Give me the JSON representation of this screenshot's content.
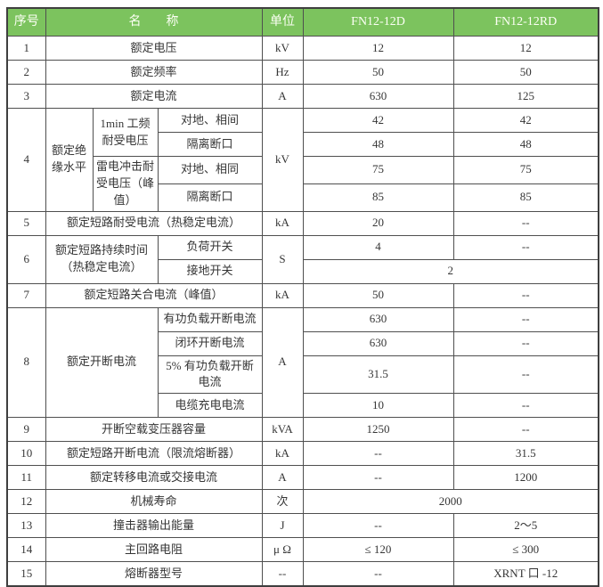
{
  "colors": {
    "header_bg": "#7cc35e",
    "header_text": "#fcfff4",
    "grid_line": "#4f4f4f",
    "body_text": "#363636"
  },
  "table": {
    "header": [
      {
        "t": "序号"
      },
      {
        "t": "名　　称",
        "cs": 3
      },
      {
        "t": "单位"
      },
      {
        "t": "FN12-12D"
      },
      {
        "t": "FN12-12RD"
      }
    ],
    "rows": [
      {
        "cells": [
          {
            "t": "1"
          },
          {
            "t": "额定电压",
            "cs": 3
          },
          {
            "t": "kV"
          },
          {
            "t": "12"
          },
          {
            "t": "12"
          }
        ]
      },
      {
        "cells": [
          {
            "t": "2"
          },
          {
            "t": "额定频率",
            "cs": 3
          },
          {
            "t": "Hz"
          },
          {
            "t": "50"
          },
          {
            "t": "50"
          }
        ]
      },
      {
        "cells": [
          {
            "t": "3"
          },
          {
            "t": "额定电流",
            "cs": 3
          },
          {
            "t": "A"
          },
          {
            "t": "630"
          },
          {
            "t": "125"
          }
        ]
      },
      {
        "cells": [
          {
            "t": "4",
            "rs": 4
          },
          {
            "t": "额定绝缘水平",
            "rs": 4
          },
          {
            "t": "1min 工频耐受电压",
            "rs": 2
          },
          {
            "t": "对地、相间"
          },
          {
            "t": "kV",
            "rs": 4
          },
          {
            "t": "42"
          },
          {
            "t": "42"
          }
        ]
      },
      {
        "cells": [
          {
            "t": "隔离断口"
          },
          {
            "t": "48"
          },
          {
            "t": "48"
          }
        ]
      },
      {
        "cells": [
          {
            "t": "雷电冲击耐受电压（峰值）",
            "rs": 2
          },
          {
            "t": "对地、相同"
          },
          {
            "t": "75"
          },
          {
            "t": "75"
          }
        ]
      },
      {
        "tall": true,
        "cells": [
          {
            "t": "隔离断口"
          },
          {
            "t": "85"
          },
          {
            "t": "85"
          }
        ]
      },
      {
        "cells": [
          {
            "t": "5"
          },
          {
            "t": "额定短路耐受电流（热稳定电流）",
            "cs": 3
          },
          {
            "t": "kA"
          },
          {
            "t": "20"
          },
          {
            "t": "--"
          }
        ]
      },
      {
        "cells": [
          {
            "t": "6",
            "rs": 2
          },
          {
            "t": "额定短路持续时间（热稳定电流）",
            "cs": 2,
            "rs": 2
          },
          {
            "t": "负荷开关"
          },
          {
            "t": "S",
            "rs": 2
          },
          {
            "t": "4"
          },
          {
            "t": "--"
          }
        ]
      },
      {
        "cells": [
          {
            "t": "接地开关"
          },
          {
            "t": "2",
            "cs": 2
          }
        ]
      },
      {
        "cells": [
          {
            "t": "7"
          },
          {
            "t": "额定短路关合电流（峰值）",
            "cs": 3
          },
          {
            "t": "kA"
          },
          {
            "t": "50"
          },
          {
            "t": "--"
          }
        ]
      },
      {
        "cells": [
          {
            "t": "8",
            "rs": 4
          },
          {
            "t": "额定开断电流",
            "cs": 2,
            "rs": 4
          },
          {
            "t": "有功负载开断电流"
          },
          {
            "t": "A",
            "rs": 4
          },
          {
            "t": "630"
          },
          {
            "t": "--"
          }
        ]
      },
      {
        "cells": [
          {
            "t": "闭环开断电流"
          },
          {
            "t": "630"
          },
          {
            "t": "--"
          }
        ]
      },
      {
        "tall": true,
        "cells": [
          {
            "t": "5% 有功负载开断电流"
          },
          {
            "t": "31.5"
          },
          {
            "t": "--"
          }
        ]
      },
      {
        "cells": [
          {
            "t": "电缆充电电流"
          },
          {
            "t": "10"
          },
          {
            "t": "--"
          }
        ]
      },
      {
        "cells": [
          {
            "t": "9"
          },
          {
            "t": "开断空载变压器容量",
            "cs": 3
          },
          {
            "t": "kVA"
          },
          {
            "t": "1250"
          },
          {
            "t": "--"
          }
        ]
      },
      {
        "cells": [
          {
            "t": "10"
          },
          {
            "t": "额定短路开断电流（限流熔断器）",
            "cs": 3
          },
          {
            "t": "kA"
          },
          {
            "t": "--"
          },
          {
            "t": "31.5"
          }
        ]
      },
      {
        "cells": [
          {
            "t": "11"
          },
          {
            "t": "额定转移电流或交接电流",
            "cs": 3
          },
          {
            "t": "A"
          },
          {
            "t": "--"
          },
          {
            "t": "1200"
          }
        ]
      },
      {
        "cells": [
          {
            "t": "12"
          },
          {
            "t": "机械寿命",
            "cs": 3
          },
          {
            "t": "次"
          },
          {
            "t": "2000",
            "cs": 2
          }
        ]
      },
      {
        "cells": [
          {
            "t": "13"
          },
          {
            "t": "撞击器输出能量",
            "cs": 3
          },
          {
            "t": "J"
          },
          {
            "t": "--"
          },
          {
            "t": "2～5"
          }
        ]
      },
      {
        "cells": [
          {
            "t": "14"
          },
          {
            "t": "主回路电阻",
            "cs": 3
          },
          {
            "t": "μ Ω"
          },
          {
            "t": "≤ 120"
          },
          {
            "t": "≤ 300"
          }
        ]
      },
      {
        "cells": [
          {
            "t": "15"
          },
          {
            "t": "熔断器型号",
            "cs": 3
          },
          {
            "t": "--"
          },
          {
            "t": "--"
          },
          {
            "t": "XRNT 口 -12"
          }
        ]
      }
    ]
  }
}
